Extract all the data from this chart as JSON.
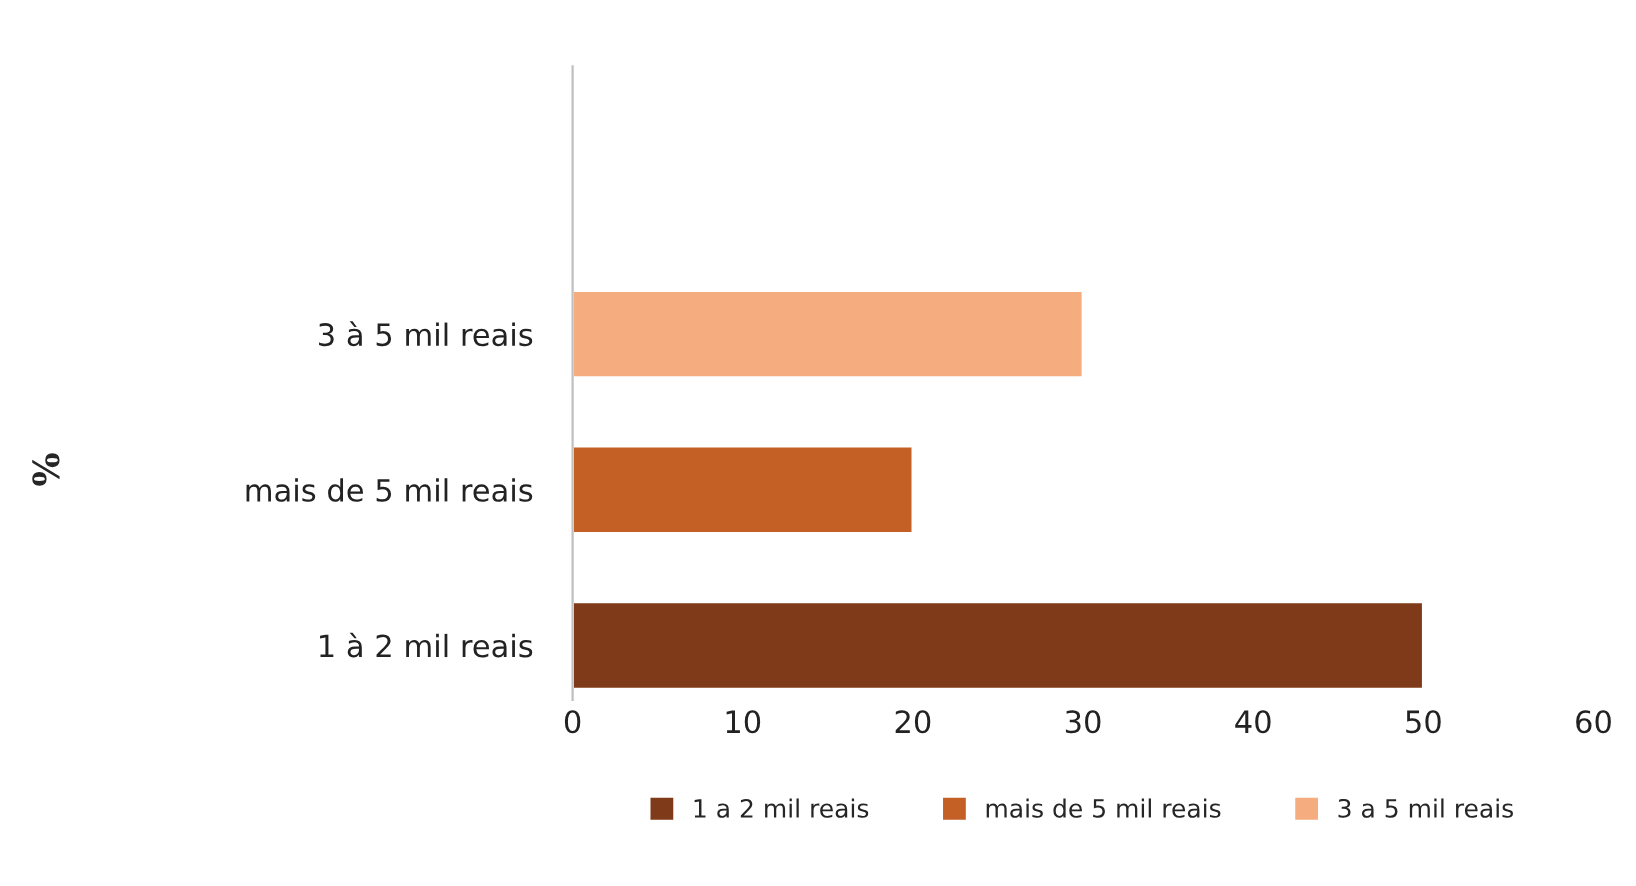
{
  "chart_data": {
    "type": "bar",
    "orientation": "horizontal",
    "annotations": [
      "%"
    ],
    "categories": [
      "3 à 5 mil reais",
      "mais de 5 mil reais",
      "1 à 2 mil reais"
    ],
    "series": [
      {
        "name": "1 a 2 mil reais",
        "color": "#7f3b19",
        "values": [
          null,
          null,
          50
        ]
      },
      {
        "name": "mais de 5 mil reais",
        "color": "#c45f26",
        "values": [
          null,
          20,
          null
        ]
      },
      {
        "name": "3 a 5 mil reais",
        "color": "#f5ad80",
        "values": [
          30,
          null,
          null
        ]
      }
    ],
    "xlim": [
      0,
      60
    ],
    "xticks": [
      0,
      10,
      20,
      30,
      40,
      50,
      60
    ],
    "grid": false,
    "legend": "bottom"
  }
}
